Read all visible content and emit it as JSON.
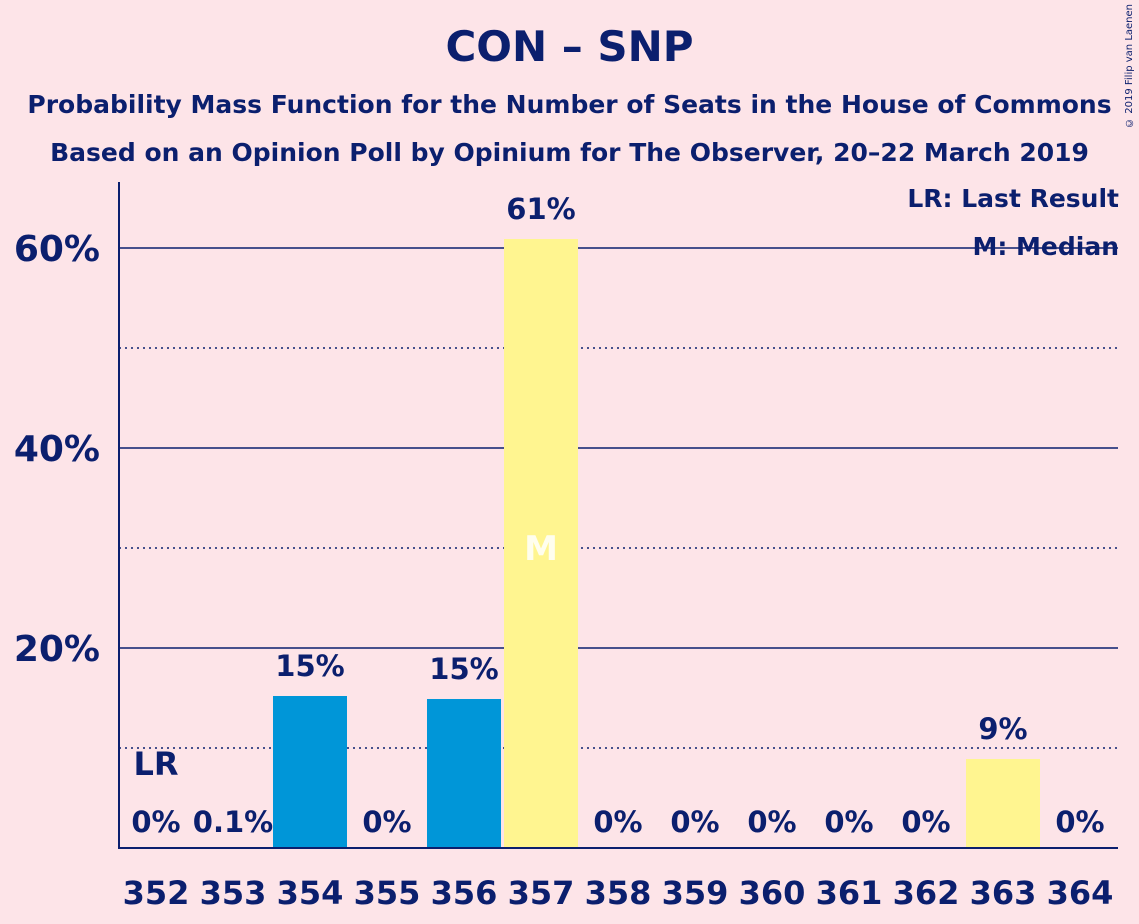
{
  "header": {
    "title": "CON – SNP",
    "subtitle1": "Probability Mass Function for the Number of Seats in the House of Commons",
    "subtitle2": "Based on an Opinion Poll by Opinium for The Observer, 20–22 March 2019"
  },
  "credit": "© 2019 Filip van Laenen",
  "legend": {
    "last_result": "LR: Last Result",
    "median": "M: Median"
  },
  "colors": {
    "background": "#fde4e8",
    "text": "#0b1f6e",
    "bar_blue": "#0096d8",
    "bar_yellow": "#fff590"
  },
  "chart_data": {
    "type": "bar",
    "categories": [
      "352",
      "353",
      "354",
      "355",
      "356",
      "357",
      "358",
      "359",
      "360",
      "361",
      "362",
      "363",
      "364"
    ],
    "values": [
      0,
      0.1,
      15.2,
      0,
      14.9,
      60.9,
      0,
      0,
      0,
      0,
      0,
      8.9,
      0
    ],
    "value_labels": [
      "0%",
      "0.1%",
      "15%",
      "0%",
      "15%",
      "61%",
      "0%",
      "0%",
      "0%",
      "0%",
      "0%",
      "9%",
      "0%"
    ],
    "bar_colors": [
      "blue",
      "blue",
      "blue",
      "blue",
      "blue",
      "yellow",
      "yellow",
      "yellow",
      "yellow",
      "yellow",
      "yellow",
      "yellow",
      "yellow"
    ],
    "ylim": [
      0,
      66
    ],
    "yticks": [
      20,
      40,
      60
    ],
    "ytick_labels": [
      "20%",
      "40%",
      "60%"
    ],
    "minor_gridlines": [
      10,
      30,
      50
    ],
    "last_result_category": "352",
    "last_result_label": "LR",
    "median_category": "357",
    "median_label": "M"
  }
}
